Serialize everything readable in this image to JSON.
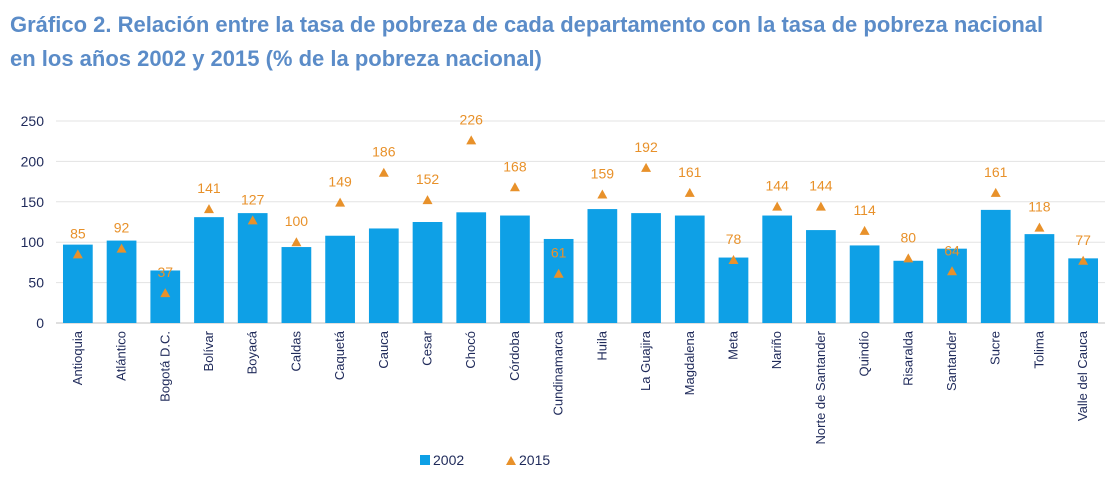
{
  "title_line1": "Gráfico 2. Relación entre la tasa de pobreza de cada departamento con la tasa de pobreza nacional",
  "title_line2": "en los años 2002 y 2015 (% de la pobreza nacional)",
  "colors": {
    "bar": "#0ea0e6",
    "marker": "#e8912a",
    "grid": "#e3e3e3",
    "axis": "#bfbfbf"
  },
  "chart_data": {
    "type": "bar",
    "title": "Gráfico 2. Relación entre la tasa de pobreza de cada departamento con la tasa de pobreza nacional en los años 2002 y 2015 (% de la pobreza nacional)",
    "xlabel": "",
    "ylabel": "",
    "ylim": [
      0,
      250
    ],
    "yticks": [
      "0",
      "50",
      "100",
      "150",
      "200",
      "250"
    ],
    "categories": [
      "Antioquia",
      "Atlántico",
      "Bogotá D.C.",
      "Bolívar",
      "Boyacá",
      "Caldas",
      "Caquetá",
      "Cauca",
      "Cesar",
      "Chocó",
      "Córdoba",
      "Cundinamarca",
      "Huila",
      "La Guajira",
      "Magdalena",
      "Meta",
      "Nariño",
      "Norte de Santander",
      "Quindío",
      "Risaralda",
      "Santander",
      "Sucre",
      "Tolima",
      "Valle del Cauca"
    ],
    "series": [
      {
        "name": "2002",
        "kind": "bar",
        "values": [
          97,
          102,
          65,
          131,
          136,
          94,
          108,
          117,
          125,
          137,
          133,
          104,
          141,
          136,
          133,
          81,
          133,
          115,
          96,
          77,
          92,
          140,
          110,
          80
        ]
      },
      {
        "name": "2015",
        "kind": "triangle-marker",
        "values": [
          85,
          92,
          37,
          141,
          127,
          100,
          149,
          186,
          152,
          226,
          168,
          61,
          159,
          192,
          161,
          78,
          144,
          144,
          114,
          80,
          64,
          161,
          118,
          77
        ],
        "labels": [
          "85",
          "92",
          "37",
          "141",
          "127",
          "100",
          "149",
          "186",
          "152",
          "226",
          "168",
          "61",
          "159",
          "192",
          "161",
          "78",
          "144",
          "144",
          "114",
          "80",
          "64",
          "161",
          "118",
          "77"
        ]
      }
    ],
    "legend": {
      "position": "bottom",
      "entries": [
        "2002",
        "2015"
      ]
    },
    "grid": true
  }
}
